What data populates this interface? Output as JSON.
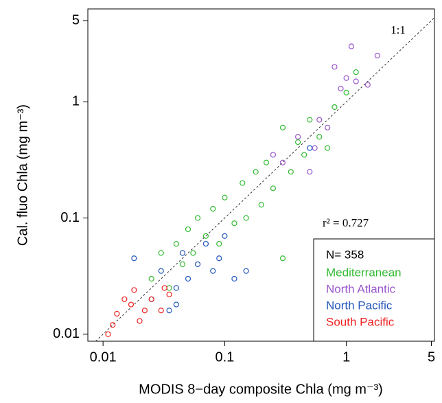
{
  "chart_data": {
    "type": "scatter",
    "x_label": "MODIS 8−day composite Chla (mg m⁻³)",
    "y_label": "Cal. fluo Chla (mg m⁻³)",
    "xscale": "log",
    "yscale": "log",
    "xlim": [
      0.0075,
      5.3
    ],
    "ylim": [
      0.0087,
      6.3
    ],
    "xticks": [
      0.01,
      0.1,
      1,
      5
    ],
    "yticks": [
      0.01,
      0.1,
      1,
      5
    ],
    "reference_line_label": "1:1",
    "annotation": "r² = 0.727",
    "legend_title": "N= 358",
    "legend_position": "lower right",
    "series": [
      {
        "name": "Mediterranean",
        "color": "#33bb33",
        "x": [
          0.025,
          0.03,
          0.035,
          0.04,
          0.045,
          0.05,
          0.055,
          0.06,
          0.07,
          0.08,
          0.09,
          0.1,
          0.12,
          0.14,
          0.15,
          0.18,
          0.2,
          0.22,
          0.25,
          0.3,
          0.35,
          0.4,
          0.45,
          0.5,
          0.6,
          0.7,
          0.8,
          1.0,
          1.2,
          0.3
        ],
        "values": [
          0.03,
          0.05,
          0.025,
          0.06,
          0.04,
          0.08,
          0.05,
          0.1,
          0.07,
          0.12,
          0.06,
          0.15,
          0.09,
          0.2,
          0.1,
          0.25,
          0.13,
          0.3,
          0.18,
          0.6,
          0.25,
          0.45,
          0.35,
          0.7,
          0.5,
          0.4,
          0.9,
          1.2,
          1.8,
          0.045
        ]
      },
      {
        "name": "North Atlantic",
        "color": "#9955cc",
        "x": [
          0.25,
          0.3,
          0.4,
          0.5,
          0.6,
          0.7,
          0.9,
          1.0,
          1.2,
          1.5,
          1.8,
          1.1,
          0.8,
          0.55
        ],
        "values": [
          0.35,
          0.3,
          0.5,
          0.25,
          0.7,
          0.6,
          1.3,
          1.6,
          1.5,
          1.4,
          2.5,
          3.0,
          2.0,
          0.4
        ]
      },
      {
        "name": "North Pacific",
        "color": "#2255bb",
        "x": [
          0.018,
          0.025,
          0.03,
          0.035,
          0.04,
          0.045,
          0.05,
          0.06,
          0.07,
          0.08,
          0.09,
          0.1,
          0.12,
          0.15,
          0.5,
          0.04
        ],
        "values": [
          0.045,
          0.02,
          0.035,
          0.016,
          0.025,
          0.05,
          0.03,
          0.04,
          0.06,
          0.035,
          0.045,
          0.07,
          0.03,
          0.035,
          0.4,
          0.018
        ]
      },
      {
        "name": "South Pacific",
        "color": "#ee2222",
        "x": [
          0.011,
          0.012,
          0.013,
          0.015,
          0.017,
          0.018,
          0.02,
          0.022,
          0.025,
          0.03,
          0.032,
          0.035
        ],
        "values": [
          0.01,
          0.012,
          0.015,
          0.02,
          0.018,
          0.024,
          0.013,
          0.016,
          0.02,
          0.016,
          0.025,
          0.022
        ]
      }
    ]
  }
}
